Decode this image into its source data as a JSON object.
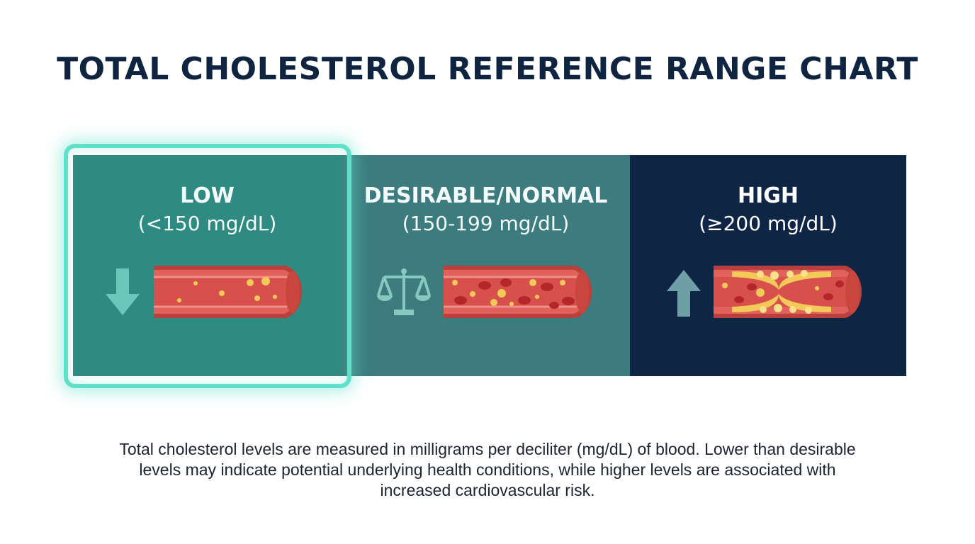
{
  "title": "TOTAL CHOLESTEROL REFERENCE RANGE CHART",
  "ranges": [
    {
      "name": "LOW",
      "range": "(<150 mg/dL)",
      "icon": "down-arrow-icon",
      "color": "#2f8b82",
      "highlighted": true
    },
    {
      "name": "DESIRABLE/NORMAL",
      "range": "(150-199 mg/dL)",
      "icon": "balance-scale-icon",
      "color": "#3c7c7e",
      "highlighted": false
    },
    {
      "name": "HIGH",
      "range": "(≥200 mg/dL)",
      "icon": "up-arrow-icon",
      "color": "#0e2545",
      "highlighted": false
    }
  ],
  "caption": "Total cholesterol levels are measured in milligrams per deciliter (mg/dL) of blood. Lower than desirable levels may indicate potential underlying health conditions, while higher levels are associated with increased cardiovascular risk.",
  "colors": {
    "highlight": "#5ee0c9",
    "vessel": "#d9574f",
    "plaque": "#f3c95a",
    "title": "#0f2440"
  }
}
